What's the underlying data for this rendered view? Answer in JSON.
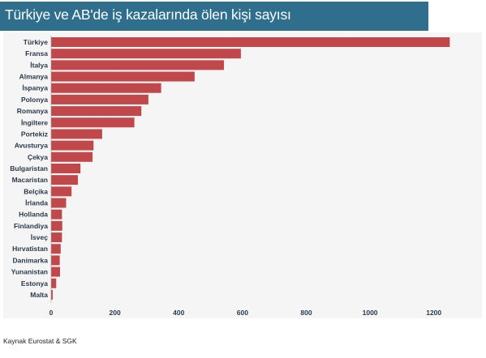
{
  "title": "Türkiye ve AB'de iş kazalarında ölen kişi sayısı",
  "source": "Kaynak Eurostat & SGK",
  "colors": {
    "bar": "#c0484a",
    "title_bg": "#2f6e8c",
    "panel_bg": "#f5f5f5"
  },
  "chart_data": {
    "type": "bar",
    "orientation": "horizontal",
    "title": "Türkiye ve AB'de iş kazalarında ölen kişi sayısı",
    "xlabel": "",
    "ylabel": "",
    "xlim": [
      0,
      1300
    ],
    "xticks": [
      0,
      200,
      400,
      600,
      800,
      1000,
      1200
    ],
    "grid": false,
    "categories": [
      "Türkiye",
      "Fransa",
      "İtalya",
      "Almanya",
      "İspanya",
      "Polonya",
      "Romanya",
      "İngiltere",
      "Portekiz",
      "Avusturya",
      "Çekya",
      "Bulgaristan",
      "Macaristan",
      "Belçika",
      "İrlanda",
      "Hollanda",
      "Finlandiya",
      "İsveç",
      "Hırvatistan",
      "Danimarka",
      "Yunanistan",
      "Estonya",
      "Malta"
    ],
    "values": [
      1250,
      595,
      542,
      450,
      345,
      305,
      283,
      261,
      160,
      133,
      130,
      92,
      84,
      64,
      47,
      34,
      35,
      34,
      30,
      27,
      28,
      16,
      5
    ]
  }
}
